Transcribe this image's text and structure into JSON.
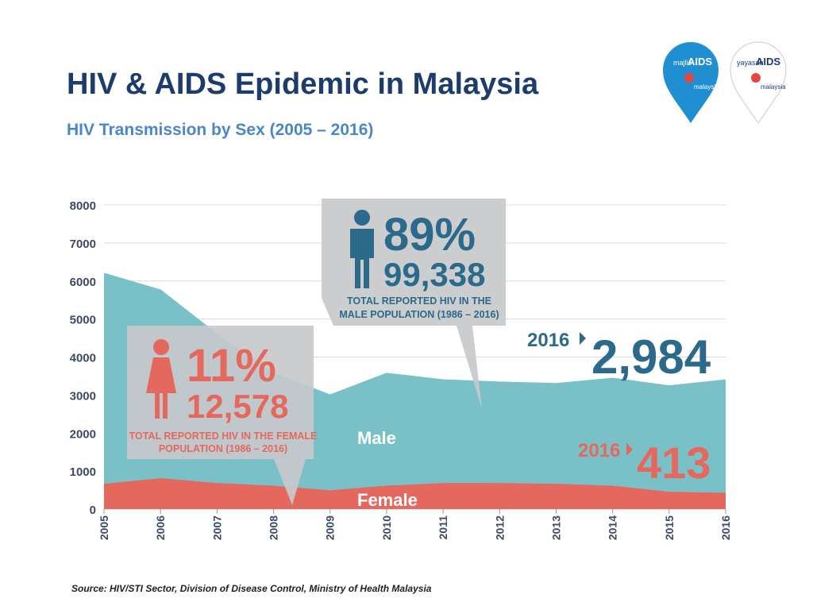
{
  "chart_data": {
    "type": "stacked_area",
    "title": "HIV & AIDS Epidemic in Malaysia",
    "subtitle": "HIV Transmission by Sex (2005 – 2016)",
    "categories": [
      "2005",
      "2006",
      "2007",
      "2008",
      "2009",
      "2010",
      "2011",
      "2012",
      "2013",
      "2014",
      "2015",
      "2016"
    ],
    "series": [
      {
        "name": "Female",
        "color": "#e5685e",
        "values": [
          650,
          800,
          670,
          600,
          480,
          600,
          670,
          670,
          650,
          600,
          440,
          413
        ]
      },
      {
        "name": "Male",
        "color": "#79c1c7",
        "values": [
          5550,
          4960,
          3930,
          2970,
          2520,
          2970,
          2730,
          2670,
          2650,
          2840,
          2800,
          2984
        ]
      }
    ],
    "ylim": [
      0,
      8000
    ],
    "yticks": [
      0,
      1000,
      2000,
      3000,
      4000,
      5000,
      6000,
      7000,
      8000
    ],
    "grid": true,
    "annotations": {
      "male_callout": {
        "percent": "89%",
        "total": "99,338",
        "lines": [
          "TOTAL REPORTED HIV IN THE",
          "MALE POPULATION (1986 – 2016)"
        ]
      },
      "female_callout": {
        "percent": "11%",
        "total": "12,578",
        "lines": [
          "TOTAL REPORTED HIV IN THE FEMALE",
          "POPULATION (1986 – 2016)"
        ]
      },
      "male_2016": {
        "year": "2016",
        "value": "2,984"
      },
      "female_2016": {
        "year": "2016",
        "value": "413"
      }
    },
    "logos": [
      {
        "top": "majlis",
        "mid": "AIDS",
        "bottom": "malaysia"
      },
      {
        "top": "yayasan",
        "mid": "AIDS",
        "bottom": "malaysia"
      }
    ],
    "source": "Source: HIV/STI Sector, Division of Disease Control, Ministry of Health Malaysia"
  }
}
